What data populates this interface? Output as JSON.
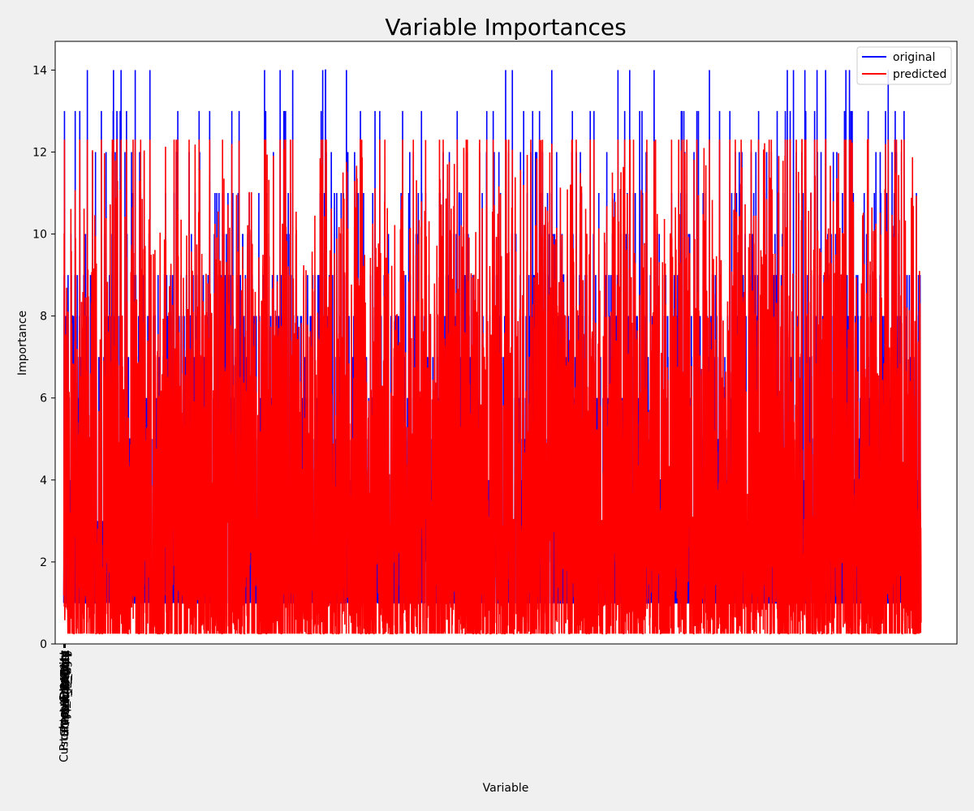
{
  "chart_data": {
    "type": "line",
    "title": "Variable Importances",
    "xlabel": "Variable",
    "ylabel": "Importance",
    "ylim": [
      0,
      14.7
    ],
    "yticks": [
      0,
      2,
      4,
      6,
      8,
      10,
      12,
      14
    ],
    "xlim": [
      -60,
      6250
    ],
    "n_points": 6000,
    "grid": false,
    "legend": "top-right",
    "x_category_labels": [
      "Product_Category",
      "Customer_Segment",
      "Discount",
      "Quantity",
      "Shipping_Mode",
      "Region",
      "Payment_Type",
      "Order_Priority",
      "Unit_Price",
      "Ship_Cost",
      "Profit_Margin",
      "Return_Flag"
    ],
    "series": [
      {
        "name": "original",
        "color": "#0000ff",
        "min": 1,
        "max": 14,
        "typical_low": 1,
        "typical_high": 9
      },
      {
        "name": "predicted",
        "color": "#ff0000",
        "min": 0.25,
        "max": 12.3,
        "typical_low": 1.2,
        "typical_high": 7.5
      }
    ]
  }
}
